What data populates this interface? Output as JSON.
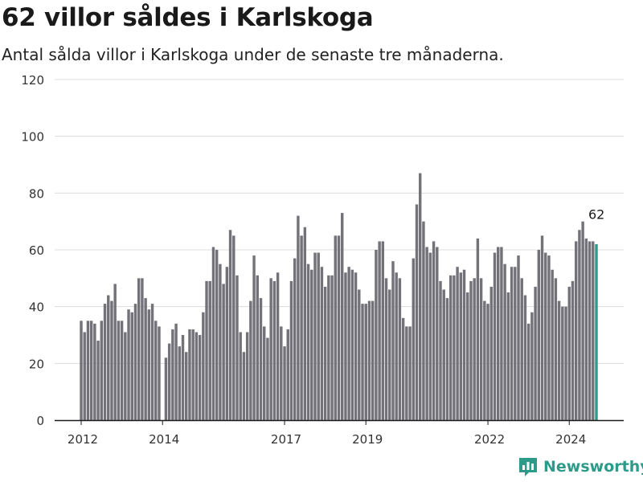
{
  "header": {
    "title": "62 villor såldes i Karlskoga",
    "subtitle": "Antal sålda villor i Karlskoga under de senaste tre månaderna."
  },
  "brand": {
    "name": "Newsworthy",
    "color": "#2d9b8a"
  },
  "chart_data": {
    "type": "bar",
    "title": "62 villor såldes i Karlskoga",
    "subtitle": "Antal sålda villor i Karlskoga under de senaste tre månaderna.",
    "xlabel": "",
    "ylabel": "",
    "ylim": [
      0,
      120
    ],
    "yticks": [
      0,
      20,
      40,
      60,
      80,
      100,
      120
    ],
    "xtick_labels": [
      "2012",
      "2014",
      "2017",
      "2019",
      "2022",
      "2024"
    ],
    "grid": true,
    "legend": "none",
    "bar_color": "#737278",
    "highlight_color": "#2d9b8a",
    "highlight_label": "62",
    "series": [
      {
        "name": "",
        "start": "2012-01",
        "frequency": "monthly",
        "values": [
          35,
          31,
          35,
          35,
          34,
          28,
          35,
          41,
          44,
          42,
          48,
          35,
          35,
          31,
          39,
          38,
          41,
          50,
          50,
          43,
          39,
          41,
          35,
          33,
          null,
          22,
          27,
          32,
          34,
          26,
          30,
          24,
          32,
          32,
          31,
          30,
          38,
          49,
          49,
          61,
          60,
          55,
          48,
          54,
          67,
          65,
          51,
          31,
          24,
          31,
          42,
          58,
          51,
          43,
          33,
          29,
          50,
          49,
          52,
          33,
          26,
          32,
          49,
          57,
          72,
          65,
          68,
          55,
          53,
          59,
          59,
          54,
          47,
          51,
          51,
          65,
          65,
          73,
          52,
          54,
          53,
          52,
          46,
          41,
          41,
          42,
          42,
          60,
          63,
          63,
          50,
          46,
          56,
          52,
          50,
          36,
          33,
          33,
          57,
          76,
          87,
          70,
          61,
          59,
          63,
          61,
          49,
          46,
          43,
          51,
          51,
          54,
          52,
          53,
          45,
          49,
          50,
          64,
          50,
          42,
          41,
          47,
          59,
          61,
          61,
          55,
          45,
          54,
          54,
          58,
          50,
          44,
          34,
          38,
          47,
          60,
          65,
          59,
          58,
          53,
          50,
          42,
          40,
          40,
          47,
          49,
          63,
          67,
          70,
          64,
          63,
          63,
          62
        ]
      }
    ]
  }
}
